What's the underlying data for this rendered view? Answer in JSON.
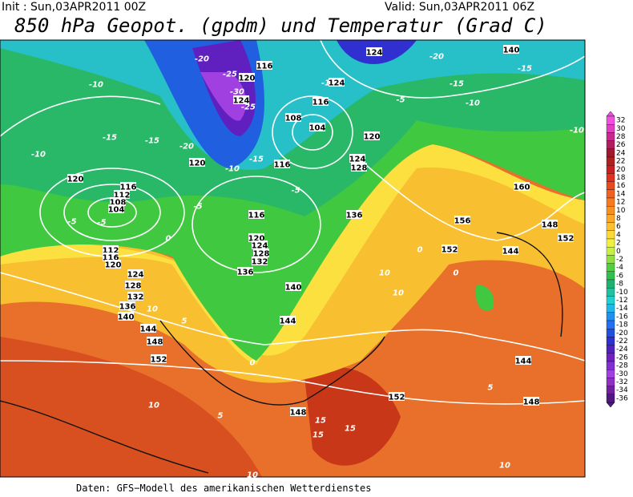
{
  "header": {
    "init": "Init : Sun,03APR2011 00Z",
    "valid": "Valid: Sun,03APR2011 06Z",
    "title": "850 hPa Geopot. (gpdm) und Temperatur (Grad C)"
  },
  "map": {
    "labels": [
      "-20",
      "116",
      "124",
      "-20",
      "140",
      "-15",
      "-10",
      "-25",
      "120",
      "124",
      "-30",
      "-25",
      "-15",
      "124",
      "116",
      "108",
      "104",
      "-5",
      "-15",
      "-10",
      "-15",
      "-10",
      "-15",
      "-20",
      "120",
      "-10",
      "-15",
      "116",
      "120",
      "124",
      "128",
      "-10",
      "160",
      "120",
      "116",
      "112",
      "108",
      "104",
      "-5",
      "-5",
      "-5",
      "116",
      "120",
      "124",
      "128",
      "132",
      "136",
      "136",
      "156",
      "148",
      "152",
      "112",
      "116",
      "120",
      "124",
      "128",
      "132",
      "136",
      "140",
      "144",
      "148",
      "152",
      "140",
      "144",
      "152",
      "144",
      "0",
      "0",
      "0",
      "5",
      "10",
      "10",
      "10",
      "0",
      "-5",
      "152",
      "148",
      "144",
      "148",
      "10",
      "10",
      "15",
      "15",
      "15",
      "5",
      "10",
      "5"
    ]
  },
  "colorbar": {
    "levels": [
      "32",
      "30",
      "28",
      "26",
      "24",
      "22",
      "20",
      "18",
      "16",
      "14",
      "12",
      "10",
      "8",
      "6",
      "4",
      "2",
      "0",
      "-2",
      "-4",
      "-6",
      "-8",
      "-10",
      "-12",
      "-14",
      "-16",
      "-18",
      "-20",
      "-22",
      "-24",
      "-26",
      "-28",
      "-30",
      "-32",
      "-34",
      "-36"
    ],
    "colors": [
      "#f050e0",
      "#e040c0",
      "#c82890",
      "#b01e60",
      "#a01830",
      "#b02020",
      "#c82020",
      "#e03020",
      "#e84a20",
      "#f06020",
      "#f57a20",
      "#f89020",
      "#fba828",
      "#fcc030",
      "#fcd838",
      "#f0f040",
      "#c8f040",
      "#90e040",
      "#50d040",
      "#30c050",
      "#20b070",
      "#20c0a0",
      "#20d0d0",
      "#20b8e8",
      "#2090f0",
      "#2070f0",
      "#2050e0",
      "#3030d0",
      "#5020c0",
      "#7020c0",
      "#8030d0",
      "#a040e0",
      "#9030c0",
      "#7020a0",
      "#501880"
    ]
  },
  "footer": {
    "source": "Daten: GFS−Modell des amerikanischen Wetterdienstes"
  }
}
